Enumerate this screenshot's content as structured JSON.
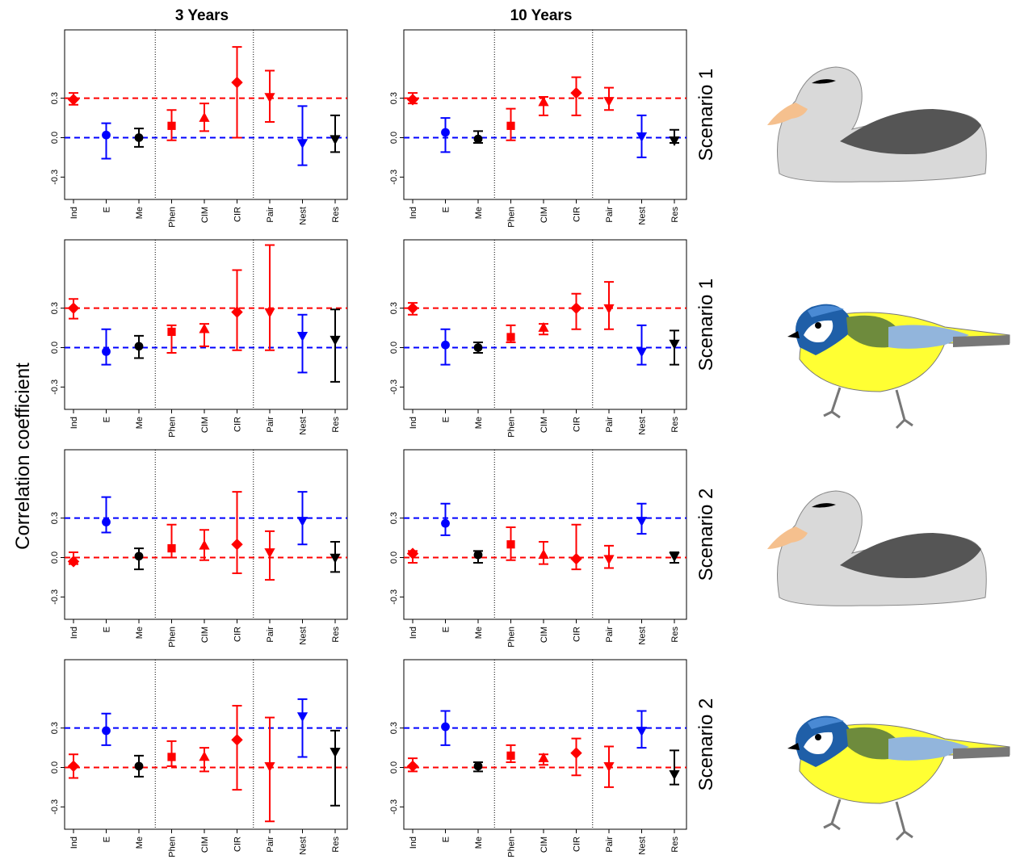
{
  "column_titles": [
    "3 Years",
    "10 Years"
  ],
  "row_labels": [
    "Scenario 1",
    "Scenario 1",
    "Scenario 2",
    "Scenario 2"
  ],
  "y_label": "Correlation coefficient",
  "chart_data": [
    {
      "type": "errorbar",
      "categories": [
        "Ind",
        "E",
        "Me",
        "Phen",
        "CIM",
        "CIR",
        "Pair",
        "Nest",
        "Res"
      ],
      "values": [
        0.29,
        0.02,
        0.0,
        0.09,
        0.15,
        0.42,
        0.31,
        -0.04,
        -0.01
      ],
      "lower": [
        0.25,
        -0.16,
        -0.07,
        -0.02,
        0.05,
        0.0,
        0.12,
        -0.21,
        -0.11
      ],
      "upper": [
        0.34,
        0.11,
        0.07,
        0.21,
        0.26,
        0.69,
        0.51,
        0.24,
        0.17
      ],
      "colors": [
        "#ff0000",
        "#0000ff",
        "#000000",
        "#ff0000",
        "#ff0000",
        "#ff0000",
        "#ff0000",
        "#0000ff",
        "#000000"
      ],
      "markers": [
        "diamond",
        "circle",
        "circle",
        "square",
        "triangle-up",
        "diamond",
        "triangle-down",
        "triangle-down",
        "triangle-down"
      ],
      "ylim": [
        -0.47,
        0.82
      ],
      "yticks": [
        -0.3,
        {
          "value": 0,
          "label": "0.0"
        },
        0.3
      ],
      "reference_lines": [
        {
          "value": 0.3,
          "color": "#ff0000"
        },
        {
          "value": 0,
          "color": "#0000ff"
        }
      ]
    },
    {
      "type": "errorbar",
      "categories": [
        "Ind",
        "E",
        "Me",
        "Phen",
        "CIM",
        "CIR",
        "Pair",
        "Nest",
        "Res"
      ],
      "values": [
        0.29,
        0.04,
        -0.01,
        0.09,
        0.27,
        0.34,
        0.28,
        0.01,
        -0.02
      ],
      "lower": [
        0.26,
        -0.11,
        -0.04,
        -0.02,
        0.17,
        0.17,
        0.21,
        -0.15,
        -0.04
      ],
      "upper": [
        0.34,
        0.15,
        0.05,
        0.22,
        0.31,
        0.46,
        0.38,
        0.17,
        0.06
      ],
      "colors": [
        "#ff0000",
        "#0000ff",
        "#000000",
        "#ff0000",
        "#ff0000",
        "#ff0000",
        "#ff0000",
        "#0000ff",
        "#000000"
      ],
      "markers": [
        "diamond",
        "circle",
        "circle",
        "square",
        "triangle-up",
        "diamond",
        "triangle-down",
        "triangle-down",
        "triangle-down"
      ],
      "ylim": [
        -0.47,
        0.82
      ],
      "yticks": [
        -0.3,
        {
          "value": 0,
          "label": "0.0"
        },
        0.3
      ],
      "reference_lines": [
        {
          "value": 0.3,
          "color": "#ff0000"
        },
        {
          "value": 0,
          "color": "#0000ff"
        }
      ]
    },
    {
      "type": "errorbar",
      "categories": [
        "Ind",
        "E",
        "Me",
        "Phen",
        "CIM",
        "CIR",
        "Pair",
        "Nest",
        "Res"
      ],
      "values": [
        0.3,
        -0.03,
        0.01,
        0.12,
        0.14,
        0.27,
        0.27,
        0.09,
        0.06
      ],
      "lower": [
        0.22,
        -0.13,
        -0.08,
        -0.04,
        0.01,
        -0.02,
        -0.02,
        -0.19,
        -0.26
      ],
      "upper": [
        0.37,
        0.14,
        0.09,
        0.17,
        0.18,
        0.59,
        0.78,
        0.25,
        0.29
      ],
      "colors": [
        "#ff0000",
        "#0000ff",
        "#000000",
        "#ff0000",
        "#ff0000",
        "#ff0000",
        "#ff0000",
        "#0000ff",
        "#000000"
      ],
      "markers": [
        "diamond",
        "circle",
        "circle",
        "square",
        "triangle-up",
        "diamond",
        "triangle-down",
        "triangle-down",
        "triangle-down"
      ],
      "ylim": [
        -0.47,
        0.82
      ],
      "yticks": [
        -0.3,
        {
          "value": 0,
          "label": "0.0"
        },
        0.3
      ],
      "reference_lines": [
        {
          "value": 0.3,
          "color": "#ff0000"
        },
        {
          "value": 0,
          "color": "#0000ff"
        }
      ]
    },
    {
      "type": "errorbar",
      "categories": [
        "Ind",
        "E",
        "Me",
        "Phen",
        "CIM",
        "CIR",
        "Pair",
        "Nest",
        "Res"
      ],
      "values": [
        0.3,
        0.02,
        0.0,
        0.08,
        0.15,
        0.3,
        0.3,
        -0.03,
        0.03
      ],
      "lower": [
        0.25,
        -0.13,
        -0.04,
        0.04,
        0.1,
        0.14,
        0.14,
        -0.13,
        -0.13
      ],
      "upper": [
        0.34,
        0.14,
        0.04,
        0.17,
        0.18,
        0.41,
        0.5,
        0.17,
        0.13
      ],
      "colors": [
        "#ff0000",
        "#0000ff",
        "#000000",
        "#ff0000",
        "#ff0000",
        "#ff0000",
        "#ff0000",
        "#0000ff",
        "#000000"
      ],
      "markers": [
        "diamond",
        "circle",
        "circle",
        "square",
        "triangle-up",
        "diamond",
        "triangle-down",
        "triangle-down",
        "triangle-down"
      ],
      "ylim": [
        -0.47,
        0.82
      ],
      "yticks": [
        -0.3,
        {
          "value": 0,
          "label": "0.0"
        },
        0.3
      ],
      "reference_lines": [
        {
          "value": 0.3,
          "color": "#ff0000"
        },
        {
          "value": 0,
          "color": "#0000ff"
        }
      ]
    },
    {
      "type": "errorbar",
      "categories": [
        "Ind",
        "E",
        "Me",
        "Phen",
        "CIM",
        "CIR",
        "Pair",
        "Nest",
        "Res"
      ],
      "values": [
        -0.03,
        0.27,
        0.01,
        0.07,
        0.09,
        0.1,
        0.04,
        0.28,
        0.0
      ],
      "lower": [
        -0.05,
        0.19,
        -0.09,
        0.0,
        -0.02,
        -0.12,
        -0.17,
        0.1,
        -0.11
      ],
      "upper": [
        0.04,
        0.46,
        0.07,
        0.25,
        0.21,
        0.5,
        0.2,
        0.5,
        0.12
      ],
      "colors": [
        "#ff0000",
        "#0000ff",
        "#000000",
        "#ff0000",
        "#ff0000",
        "#ff0000",
        "#ff0000",
        "#0000ff",
        "#000000"
      ],
      "markers": [
        "diamond",
        "circle",
        "circle",
        "square",
        "triangle-up",
        "diamond",
        "triangle-down",
        "triangle-down",
        "triangle-down"
      ],
      "ylim": [
        -0.47,
        0.82
      ],
      "yticks": [
        -0.3,
        {
          "value": 0,
          "label": "0.0"
        },
        0.3
      ],
      "reference_lines": [
        {
          "value": 0.3,
          "color": "#0000ff"
        },
        {
          "value": 0,
          "color": "#ff0000"
        }
      ]
    },
    {
      "type": "errorbar",
      "categories": [
        "Ind",
        "E",
        "Me",
        "Phen",
        "CIM",
        "CIR",
        "Pair",
        "Nest",
        "Res"
      ],
      "values": [
        0.03,
        0.26,
        0.02,
        0.1,
        0.02,
        -0.01,
        -0.01,
        0.28,
        0.01
      ],
      "lower": [
        -0.04,
        0.17,
        -0.04,
        -0.02,
        -0.05,
        -0.09,
        -0.08,
        0.18,
        -0.04
      ],
      "upper": [
        0.05,
        0.41,
        0.05,
        0.23,
        0.12,
        0.25,
        0.09,
        0.41,
        0.04
      ],
      "colors": [
        "#ff0000",
        "#0000ff",
        "#000000",
        "#ff0000",
        "#ff0000",
        "#ff0000",
        "#ff0000",
        "#0000ff",
        "#000000"
      ],
      "markers": [
        "diamond",
        "circle",
        "circle",
        "square",
        "triangle-up",
        "diamond",
        "triangle-down",
        "triangle-down",
        "triangle-down"
      ],
      "ylim": [
        -0.47,
        0.82
      ],
      "yticks": [
        -0.3,
        {
          "value": 0,
          "label": "0.0"
        },
        0.3
      ],
      "reference_lines": [
        {
          "value": 0.3,
          "color": "#0000ff"
        },
        {
          "value": 0,
          "color": "#ff0000"
        }
      ]
    },
    {
      "type": "errorbar",
      "categories": [
        "Ind",
        "E",
        "Me",
        "Phen",
        "CIM",
        "CIR",
        "Pair",
        "Nest",
        "Res"
      ],
      "values": [
        0.01,
        0.28,
        0.01,
        0.08,
        0.08,
        0.21,
        0.01,
        0.39,
        0.12
      ],
      "lower": [
        -0.08,
        0.17,
        -0.07,
        0.01,
        -0.03,
        -0.17,
        -0.41,
        0.08,
        -0.29
      ],
      "upper": [
        0.1,
        0.41,
        0.09,
        0.2,
        0.15,
        0.47,
        0.38,
        0.52,
        0.28
      ],
      "colors": [
        "#ff0000",
        "#0000ff",
        "#000000",
        "#ff0000",
        "#ff0000",
        "#ff0000",
        "#ff0000",
        "#0000ff",
        "#000000"
      ],
      "markers": [
        "diamond",
        "circle",
        "circle",
        "square",
        "triangle-up",
        "diamond",
        "triangle-down",
        "triangle-down",
        "triangle-down"
      ],
      "ylim": [
        -0.47,
        0.82
      ],
      "yticks": [
        -0.3,
        {
          "value": 0,
          "label": "0.0"
        },
        0.3
      ],
      "reference_lines": [
        {
          "value": 0.3,
          "color": "#0000ff"
        },
        {
          "value": 0,
          "color": "#ff0000"
        }
      ]
    },
    {
      "type": "errorbar",
      "categories": [
        "Ind",
        "E",
        "Me",
        "Phen",
        "CIM",
        "CIR",
        "Pair",
        "Nest",
        "Res"
      ],
      "values": [
        0.01,
        0.31,
        0.01,
        0.09,
        0.07,
        0.11,
        0.01,
        0.28,
        -0.05
      ],
      "lower": [
        -0.03,
        0.17,
        -0.03,
        0.04,
        0.02,
        -0.06,
        -0.15,
        0.15,
        -0.13
      ],
      "upper": [
        0.07,
        0.43,
        0.04,
        0.17,
        0.1,
        0.22,
        0.16,
        0.43,
        0.13
      ],
      "colors": [
        "#ff0000",
        "#0000ff",
        "#000000",
        "#ff0000",
        "#ff0000",
        "#ff0000",
        "#ff0000",
        "#0000ff",
        "#000000"
      ],
      "markers": [
        "diamond",
        "circle",
        "circle",
        "square",
        "triangle-up",
        "diamond",
        "triangle-down",
        "triangle-down",
        "triangle-down"
      ],
      "ylim": [
        -0.47,
        0.82
      ],
      "yticks": [
        -0.3,
        {
          "value": 0,
          "label": "0.0"
        },
        0.3
      ],
      "reference_lines": [
        {
          "value": 0.3,
          "color": "#0000ff"
        },
        {
          "value": 0,
          "color": "#ff0000"
        }
      ]
    }
  ]
}
